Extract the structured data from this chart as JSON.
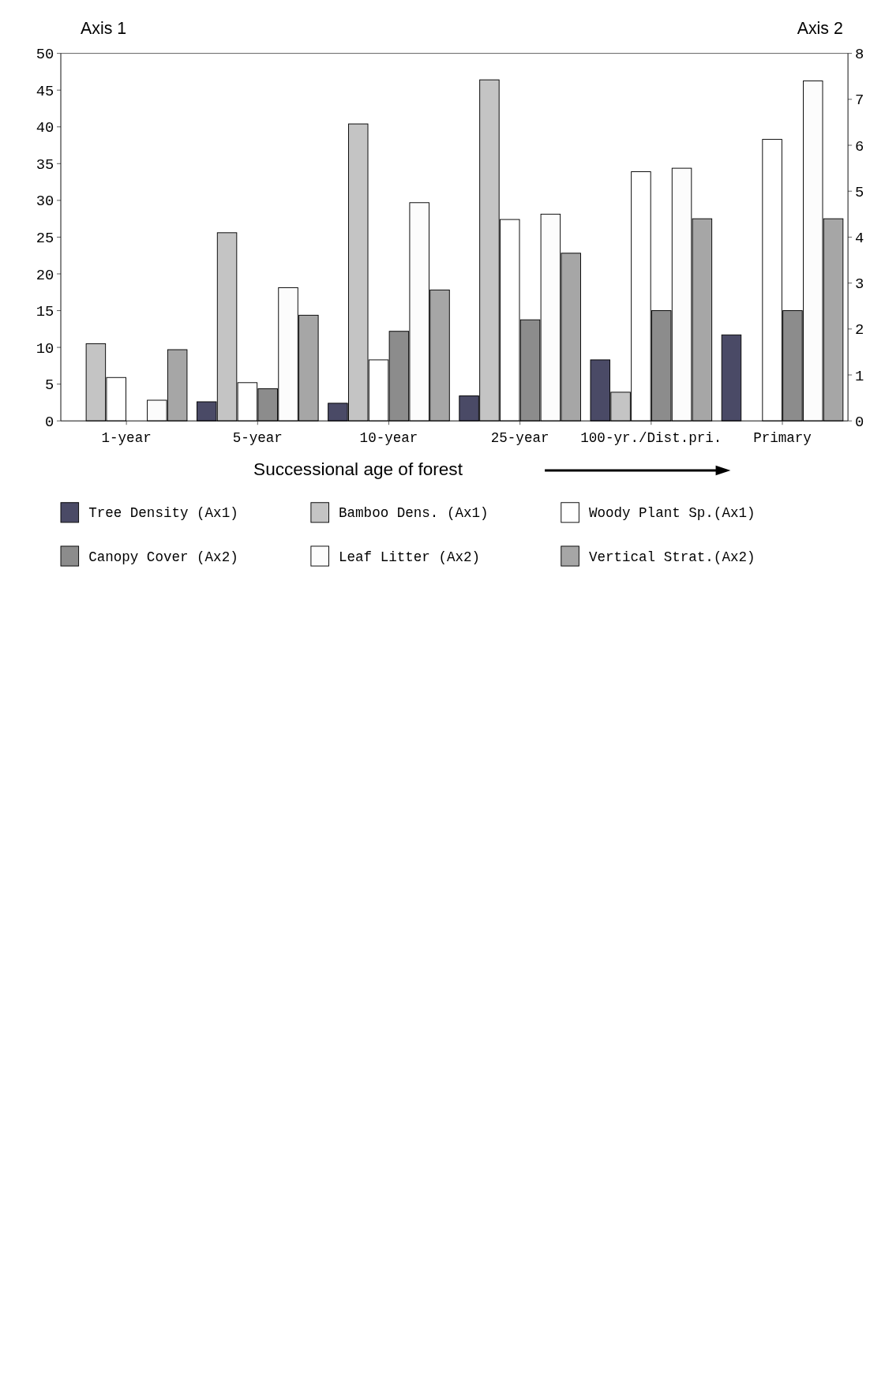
{
  "chart_data": {
    "type": "bar",
    "xlabel": "Successional age of forest",
    "ylabel": "Axis 1",
    "y2label": "Axis 2",
    "categories": [
      "1-year",
      "5-year",
      "10-year",
      "25-year",
      "100-yr./Dist.pri.",
      "Primary"
    ],
    "series": [
      {
        "name": "Tree Density (Ax1)",
        "color": "#4a4a66",
        "values": [
          0,
          2.6,
          2.4,
          3.4,
          8.3,
          11.7
        ]
      },
      {
        "name": "Bamboo Dens. (Ax1)",
        "color": "#c4c4c4",
        "values": [
          10.5,
          25.6,
          40.4,
          46.4,
          3.9,
          0
        ]
      },
      {
        "name": "Woody Plant Sp.(Ax1)",
        "color": "#ffffff",
        "values": [
          5.9,
          5.2,
          8.3,
          27.4,
          33.9,
          38.3
        ]
      },
      {
        "name": "Canopy Cover (Ax2)",
        "color": "#8c8c8c",
        "axis": "y2",
        "values": [
          0,
          0.7,
          1.95,
          2.2,
          2.4,
          2.4
        ]
      },
      {
        "name": "Leaf Litter (Ax2)",
        "color": "#fcfcfc",
        "axis": "y2",
        "values": [
          0.45,
          2.9,
          4.75,
          4.5,
          5.5,
          7.4
        ]
      },
      {
        "name": "Vertical Strat.(Ax2)",
        "color": "#a6a6a6",
        "axis": "y2",
        "values": [
          1.55,
          2.3,
          2.85,
          3.65,
          4.4,
          4.4
        ]
      }
    ],
    "ylim": [
      0,
      50
    ],
    "yticks": [
      0,
      5,
      10,
      15,
      20,
      25,
      30,
      35,
      40,
      45,
      50
    ],
    "y2lim": [
      0,
      8
    ],
    "y2ticks": [
      0,
      1,
      2,
      3,
      4,
      5,
      6,
      7,
      8
    ],
    "legend": "bottom"
  }
}
